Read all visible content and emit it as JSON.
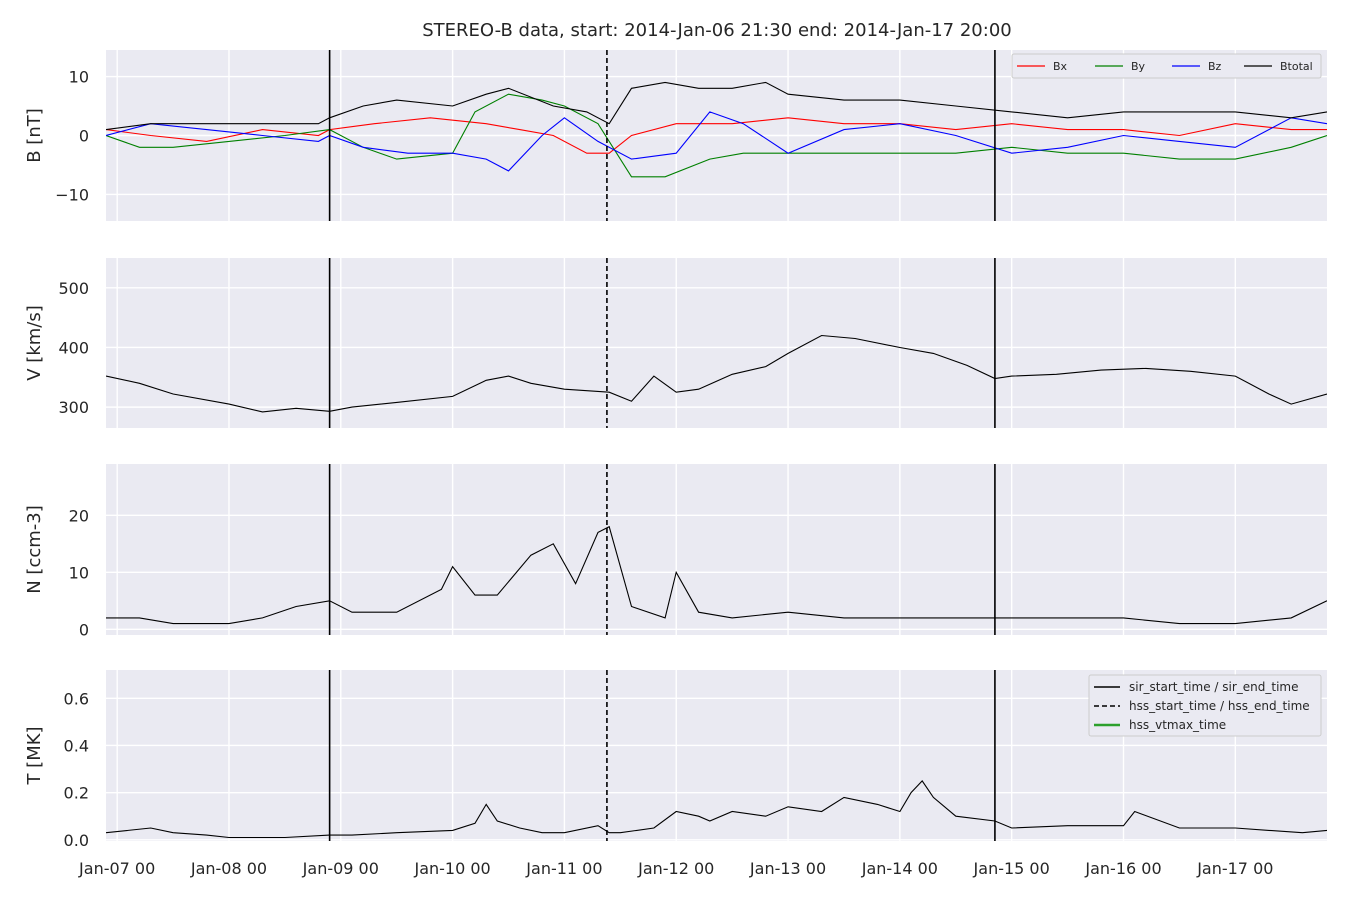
{
  "figure": {
    "title": "STEREO-B data, start: 2014-Jan-06 21:30  end: 2014-Jan-17 20:00",
    "x_tick_labels": [
      "Jan-07 00",
      "Jan-08 00",
      "Jan-09 00",
      "Jan-10 00",
      "Jan-11 00",
      "Jan-12 00",
      "Jan-13 00",
      "Jan-14 00",
      "Jan-15 00",
      "Jan-16 00",
      "Jan-17 00"
    ],
    "colors": {
      "panel_bg": "#eaeaf2",
      "grid": "#ffffff",
      "bx": "#ff0000",
      "by": "#008000",
      "bz": "#0000ff",
      "btotal": "#000000",
      "hss_vtmax": "#2ca02c"
    }
  },
  "chart_data": [
    {
      "type": "line",
      "title": "STEREO-B data, start: 2014-Jan-06 21:30  end: 2014-Jan-17 20:00",
      "xlabel": "",
      "ylabel": "B [nT]",
      "xlim": [
        -0.1,
        10.82
      ],
      "ylim": [
        -14.5,
        14.5
      ],
      "yticks": [
        -10,
        0,
        10
      ],
      "grid": true,
      "legend": "top-right",
      "series": [
        {
          "name": "Bx",
          "color": "#ff0000",
          "x": [
            -0.1,
            0.3,
            0.8,
            1.3,
            1.8,
            1.9,
            2.3,
            2.8,
            3.3,
            3.6,
            3.9,
            4.2,
            4.4,
            4.6,
            5.0,
            5.5,
            6.0,
            6.5,
            7.0,
            7.5,
            8.0,
            8.5,
            9.0,
            9.5,
            10.0,
            10.5,
            10.82
          ],
          "values": [
            1,
            0,
            -1,
            1,
            0,
            1,
            2,
            3,
            2,
            1,
            0,
            -3,
            -3,
            0,
            2,
            2,
            3,
            2,
            2,
            1,
            2,
            1,
            1,
            0,
            2,
            1,
            1
          ]
        },
        {
          "name": "By",
          "color": "#008000",
          "x": [
            -0.1,
            0.2,
            0.5,
            1.0,
            1.5,
            1.9,
            2.2,
            2.5,
            3.0,
            3.2,
            3.5,
            3.8,
            4.0,
            4.3,
            4.6,
            4.9,
            5.3,
            5.6,
            6.0,
            6.5,
            7.0,
            7.5,
            8.0,
            8.5,
            9.0,
            9.5,
            10.0,
            10.5,
            10.82
          ],
          "values": [
            0,
            -2,
            -2,
            -1,
            0,
            1,
            -2,
            -4,
            -3,
            4,
            7,
            6,
            5,
            2,
            -7,
            -7,
            -4,
            -3,
            -3,
            -3,
            -3,
            -3,
            -2,
            -3,
            -3,
            -4,
            -4,
            -2,
            0
          ]
        },
        {
          "name": "Bz",
          "color": "#0000ff",
          "x": [
            -0.1,
            0.3,
            0.8,
            1.3,
            1.8,
            1.9,
            2.2,
            2.6,
            3.0,
            3.3,
            3.5,
            3.8,
            4.0,
            4.3,
            4.6,
            5.0,
            5.3,
            5.6,
            6.0,
            6.5,
            7.0,
            7.5,
            8.0,
            8.5,
            9.0,
            9.5,
            10.0,
            10.5,
            10.82
          ],
          "values": [
            0,
            2,
            1,
            0,
            -1,
            0,
            -2,
            -3,
            -3,
            -4,
            -6,
            0,
            3,
            -1,
            -4,
            -3,
            4,
            2,
            -3,
            1,
            2,
            0,
            -3,
            -2,
            0,
            -1,
            -2,
            3,
            2
          ]
        },
        {
          "name": "Btotal",
          "color": "#000000",
          "x": [
            -0.1,
            0.3,
            0.8,
            1.3,
            1.8,
            1.9,
            2.2,
            2.5,
            3.0,
            3.3,
            3.5,
            3.9,
            4.2,
            4.4,
            4.6,
            4.9,
            5.2,
            5.5,
            5.8,
            6.0,
            6.5,
            7.0,
            7.5,
            8.0,
            8.5,
            9.0,
            9.5,
            10.0,
            10.5,
            10.82
          ],
          "values": [
            1,
            2,
            2,
            2,
            2,
            3,
            5,
            6,
            5,
            7,
            8,
            5,
            4,
            2,
            8,
            9,
            8,
            8,
            9,
            7,
            6,
            6,
            5,
            4,
            3,
            4,
            4,
            4,
            3,
            4
          ]
        }
      ],
      "vlines": [
        {
          "name": "sir_start_time / sir_end_time",
          "style": "solid",
          "x": 1.9
        },
        {
          "name": "hss_start_time / hss_end_time",
          "style": "dashed",
          "x": 4.38
        },
        {
          "name": "sir_start_time / sir_end_time",
          "style": "solid",
          "x": 7.85
        }
      ]
    },
    {
      "type": "line",
      "xlabel": "",
      "ylabel": "V [km/s]",
      "xlim": [
        -0.1,
        10.82
      ],
      "ylim": [
        265,
        550
      ],
      "yticks": [
        300,
        400,
        500
      ],
      "grid": true,
      "series": [
        {
          "name": "",
          "color": "#000000",
          "x": [
            -0.1,
            0.2,
            0.5,
            1.0,
            1.3,
            1.6,
            1.9,
            2.1,
            2.5,
            3.0,
            3.3,
            3.5,
            3.7,
            4.0,
            4.4,
            4.6,
            4.8,
            5.0,
            5.2,
            5.5,
            5.8,
            6.0,
            6.3,
            6.6,
            7.0,
            7.3,
            7.6,
            7.85,
            8.0,
            8.4,
            8.8,
            9.2,
            9.6,
            10.0,
            10.3,
            10.5,
            10.82
          ],
          "values": [
            352,
            340,
            322,
            305,
            292,
            298,
            293,
            300,
            308,
            318,
            345,
            352,
            340,
            330,
            325,
            310,
            352,
            325,
            330,
            355,
            368,
            390,
            420,
            415,
            400,
            390,
            370,
            348,
            352,
            355,
            362,
            365,
            360,
            352,
            322,
            305,
            322
          ]
        }
      ]
    },
    {
      "type": "line",
      "xlabel": "",
      "ylabel": "N [ccm-3]",
      "xlim": [
        -0.1,
        10.82
      ],
      "ylim": [
        -1,
        29
      ],
      "yticks": [
        0,
        10,
        20
      ],
      "grid": true,
      "series": [
        {
          "name": "",
          "color": "#000000",
          "x": [
            -0.1,
            0.2,
            0.5,
            1.0,
            1.3,
            1.6,
            1.9,
            2.1,
            2.5,
            2.9,
            3.0,
            3.2,
            3.4,
            3.7,
            3.9,
            4.1,
            4.3,
            4.4,
            4.6,
            4.9,
            5.0,
            5.2,
            5.5,
            6.0,
            6.5,
            7.0,
            7.5,
            8.0,
            8.5,
            9.0,
            9.5,
            10.0,
            10.5,
            10.82
          ],
          "values": [
            2,
            2,
            1,
            1,
            2,
            4,
            5,
            3,
            3,
            7,
            11,
            6,
            6,
            13,
            15,
            8,
            17,
            18,
            4,
            2,
            10,
            3,
            2,
            3,
            2,
            2,
            2,
            2,
            2,
            2,
            1,
            1,
            2,
            5
          ]
        }
      ]
    },
    {
      "type": "line",
      "xlabel": "",
      "ylabel": "T [MK]",
      "xlim": [
        -0.1,
        10.82
      ],
      "ylim": [
        -0.005,
        0.72
      ],
      "yticks": [
        0.0,
        0.2,
        0.4,
        0.6
      ],
      "grid": true,
      "legend": "top-right",
      "series": [
        {
          "name": "",
          "color": "#000000",
          "x": [
            -0.1,
            0.3,
            0.5,
            0.8,
            1.0,
            1.5,
            1.9,
            2.1,
            2.5,
            3.0,
            3.2,
            3.3,
            3.4,
            3.6,
            3.8,
            4.0,
            4.3,
            4.4,
            4.5,
            4.8,
            5.0,
            5.2,
            5.3,
            5.5,
            5.8,
            6.0,
            6.3,
            6.5,
            6.8,
            7.0,
            7.1,
            7.2,
            7.3,
            7.5,
            7.85,
            8.0,
            8.5,
            9.0,
            9.1,
            9.5,
            10.0,
            10.3,
            10.6,
            10.82
          ],
          "values": [
            0.03,
            0.05,
            0.03,
            0.02,
            0.01,
            0.01,
            0.02,
            0.02,
            0.03,
            0.04,
            0.07,
            0.15,
            0.08,
            0.05,
            0.03,
            0.03,
            0.06,
            0.03,
            0.03,
            0.05,
            0.12,
            0.1,
            0.08,
            0.12,
            0.1,
            0.14,
            0.12,
            0.18,
            0.15,
            0.12,
            0.2,
            0.25,
            0.18,
            0.1,
            0.08,
            0.05,
            0.06,
            0.06,
            0.12,
            0.05,
            0.05,
            0.04,
            0.03,
            0.04
          ]
        }
      ],
      "vlines": [
        {
          "name": "sir_start_time / sir_end_time",
          "style": "solid",
          "x": 1.9
        },
        {
          "name": "hss_start_time / hss_end_time",
          "style": "dashed",
          "x": 4.38
        },
        {
          "name": "sir_start_time / sir_end_time",
          "style": "solid",
          "x": 7.85
        }
      ],
      "legend_entries": [
        {
          "label": "sir_start_time / sir_end_time",
          "style": "solid",
          "color": "#000000"
        },
        {
          "label": "hss_start_time / hss_end_time",
          "style": "dashed",
          "color": "#000000"
        },
        {
          "label": "hss_vtmax_time",
          "style": "solid",
          "color": "#2ca02c"
        }
      ]
    }
  ]
}
